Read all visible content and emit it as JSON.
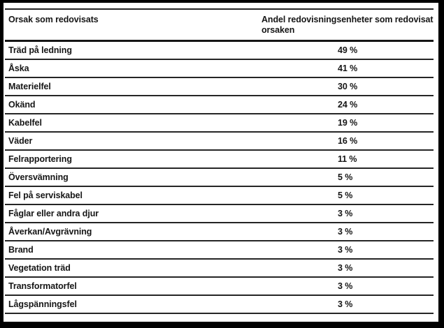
{
  "frame": {
    "background": "#ffffff",
    "border_color": "#000000",
    "rule_color": "#1f1f1f",
    "text_color": "#161616"
  },
  "table": {
    "headers": {
      "cause": "Orsak som redovisats",
      "share": "Andel redovisningsenheter som redovisat orsaken"
    },
    "rows": [
      {
        "cause": "Träd på ledning",
        "share": "49 %"
      },
      {
        "cause": "Åska",
        "share": "41 %"
      },
      {
        "cause": "Materielfel",
        "share": "30 %"
      },
      {
        "cause": "Okänd",
        "share": "24 %"
      },
      {
        "cause": "Kabelfel",
        "share": "19 %"
      },
      {
        "cause": "Väder",
        "share": "16 %"
      },
      {
        "cause": "Felrapportering",
        "share": "11 %"
      },
      {
        "cause": "Översvämning",
        "share": "5 %"
      },
      {
        "cause": "Fel på serviskabel",
        "share": "5 %"
      },
      {
        "cause": "Fåglar eller andra djur",
        "share": "3 %"
      },
      {
        "cause": "Åverkan/Avgrävning",
        "share": "3 %"
      },
      {
        "cause": "Brand",
        "share": "3 %"
      },
      {
        "cause": "Vegetation träd",
        "share": "3 %"
      },
      {
        "cause": "Transformatorfel",
        "share": "3 %"
      },
      {
        "cause": "Lågspänningsfel",
        "share": "3 %"
      }
    ]
  }
}
